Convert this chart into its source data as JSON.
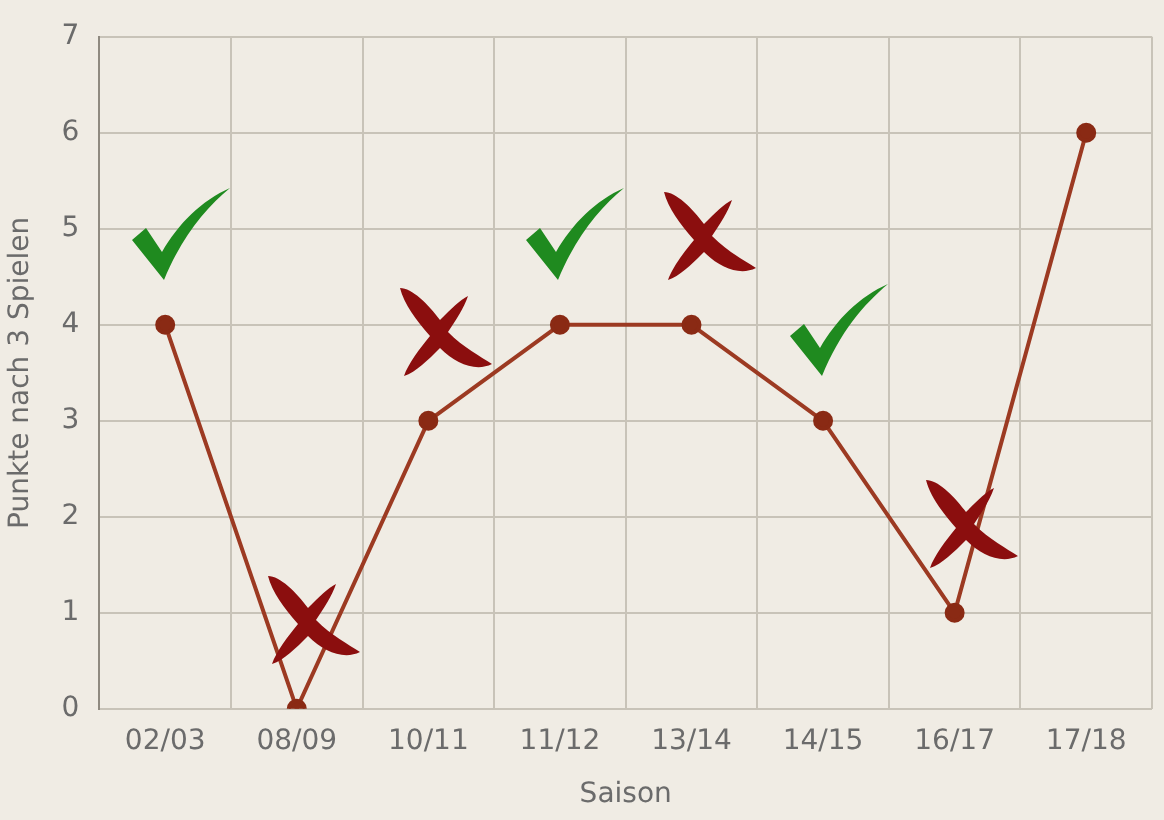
{
  "chart_data": {
    "type": "line",
    "xlabel": "Saison",
    "ylabel": "Punkte nach 3 Spielen",
    "categories": [
      "02/03",
      "08/09",
      "10/11",
      "11/12",
      "13/14",
      "14/15",
      "16/17",
      "17/18"
    ],
    "series": [
      {
        "color": "#9c3a22",
        "values": [
          4,
          0,
          3,
          4,
          4,
          3,
          1,
          6
        ]
      }
    ],
    "ylim": [
      0,
      7
    ],
    "yticks": [
      0,
      1,
      2,
      3,
      4,
      5,
      6,
      7
    ],
    "grid": true,
    "legend": false,
    "marker": "circle",
    "line_style": "solid"
  }
}
